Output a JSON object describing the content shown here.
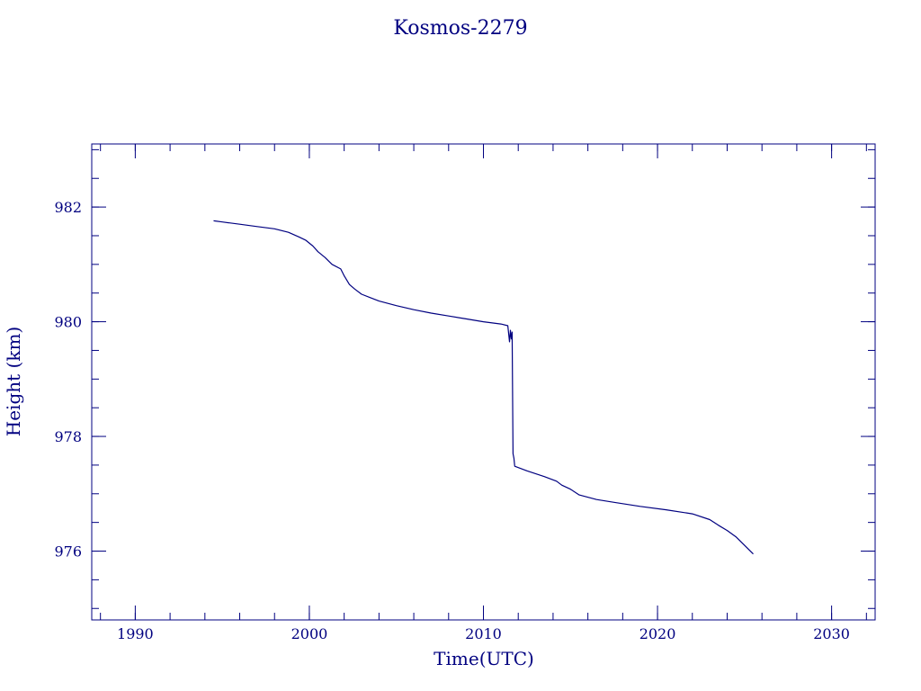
{
  "chart_data": {
    "type": "line",
    "title": "Kosmos-2279",
    "xlabel": "Time(UTC)",
    "ylabel": "Height (km)",
    "xlim": [
      1987.5,
      2032.5
    ],
    "ylim": [
      974.8,
      983.1
    ],
    "x_ticks": [
      1990,
      2000,
      2010,
      2020,
      2030
    ],
    "y_ticks": [
      976,
      978,
      980,
      982
    ],
    "x_minor_step": 2,
    "y_minor_step": 0.5,
    "grid": false,
    "line_color": "#000080",
    "series": [
      {
        "points": [
          [
            1994.5,
            981.76
          ],
          [
            1995.0,
            981.74
          ],
          [
            1996.0,
            981.7
          ],
          [
            1997.0,
            981.66
          ],
          [
            1998.0,
            981.62
          ],
          [
            1998.8,
            981.56
          ],
          [
            1999.4,
            981.48
          ],
          [
            1999.8,
            981.42
          ],
          [
            2000.2,
            981.32
          ],
          [
            2000.5,
            981.22
          ],
          [
            2000.9,
            981.12
          ],
          [
            2001.3,
            981.0
          ],
          [
            2001.8,
            980.92
          ],
          [
            2002.0,
            980.8
          ],
          [
            2002.3,
            980.65
          ],
          [
            2002.6,
            980.57
          ],
          [
            2003.0,
            980.48
          ],
          [
            2003.5,
            980.42
          ],
          [
            2004.0,
            980.36
          ],
          [
            2005.0,
            980.28
          ],
          [
            2006.0,
            980.21
          ],
          [
            2007.0,
            980.15
          ],
          [
            2008.0,
            980.1
          ],
          [
            2009.0,
            980.05
          ],
          [
            2010.0,
            980.0
          ],
          [
            2011.0,
            979.96
          ],
          [
            2011.4,
            979.93
          ],
          [
            2011.5,
            979.65
          ],
          [
            2011.55,
            979.85
          ],
          [
            2011.6,
            979.7
          ],
          [
            2011.65,
            979.82
          ],
          [
            2011.7,
            977.7
          ],
          [
            2011.75,
            977.62
          ],
          [
            2011.8,
            977.48
          ],
          [
            2012.5,
            977.4
          ],
          [
            2013.5,
            977.3
          ],
          [
            2014.2,
            977.22
          ],
          [
            2014.5,
            977.15
          ],
          [
            2015.0,
            977.08
          ],
          [
            2015.5,
            976.98
          ],
          [
            2016.5,
            976.9
          ],
          [
            2017.5,
            976.85
          ],
          [
            2019.0,
            976.78
          ],
          [
            2020.5,
            976.72
          ],
          [
            2022.0,
            976.65
          ],
          [
            2023.0,
            976.55
          ],
          [
            2023.5,
            976.45
          ],
          [
            2024.0,
            976.36
          ],
          [
            2024.5,
            976.25
          ],
          [
            2025.0,
            976.1
          ],
          [
            2025.5,
            975.95
          ]
        ]
      }
    ]
  }
}
